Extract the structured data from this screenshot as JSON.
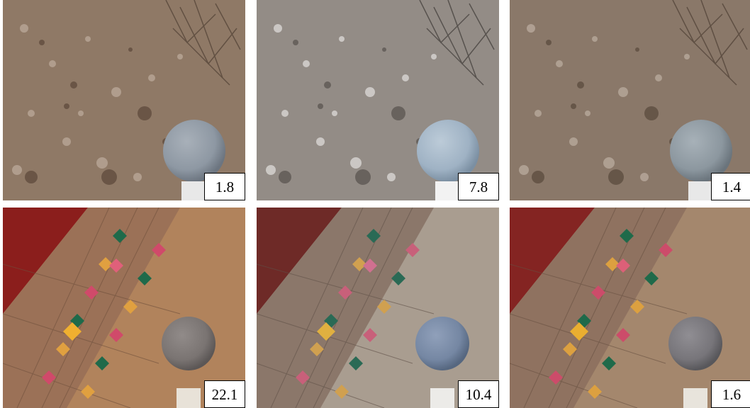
{
  "panels": [
    {
      "label": "1.8",
      "scene": "desert",
      "tone": "#8f7966",
      "gravel_light": "#b9a797",
      "gravel_dark": "#5e4a3c",
      "sphere": "#8e98a3"
    },
    {
      "label": "7.8",
      "scene": "desert",
      "tone": "#938c86",
      "gravel_light": "#d5d2cf",
      "gravel_dark": "#5a5450",
      "sphere": "#9fb2c4"
    },
    {
      "label": "1.4",
      "scene": "desert",
      "tone": "#8a7869",
      "gravel_light": "#b8a99c",
      "gravel_dark": "#5b4b3e",
      "sphere": "#8c979f"
    },
    {
      "label": "22.1",
      "scene": "tiles",
      "tone": "#9a6f4e",
      "tile": "#9b7157",
      "floor": "#b1835c",
      "rug": "#8b1e1c",
      "sphere": "#7a7472"
    },
    {
      "label": "10.4",
      "scene": "tiles",
      "tone": "#8f7e72",
      "tile": "#8b776a",
      "floor": "#a99d90",
      "rug": "#6e2a27",
      "sphere": "#7587a3"
    },
    {
      "label": "1.6",
      "scene": "tiles",
      "tone": "#946f55",
      "tile": "#8f7260",
      "floor": "#a4876d",
      "rug": "#842422",
      "sphere": "#77757a"
    }
  ]
}
